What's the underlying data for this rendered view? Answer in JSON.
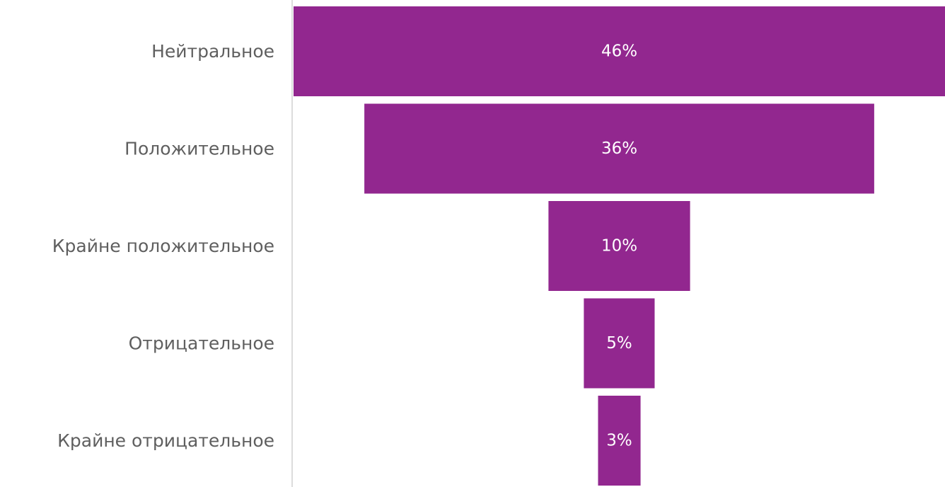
{
  "chart_data": {
    "type": "bar",
    "subtype": "funnel",
    "categories": [
      "Нейтральное",
      "Положительное",
      "Крайне положительное",
      "Отрицательное",
      "Крайне отрицательное"
    ],
    "values": [
      46,
      36,
      10,
      5,
      3
    ],
    "value_labels": [
      "46%",
      "36%",
      "10%",
      "5%",
      "3%"
    ],
    "unit": "%",
    "bar_color": "#92278f",
    "axis_color": "#dcdcdc",
    "label_color": "#5f5f5f",
    "bar_label_color": "#ffffff"
  }
}
